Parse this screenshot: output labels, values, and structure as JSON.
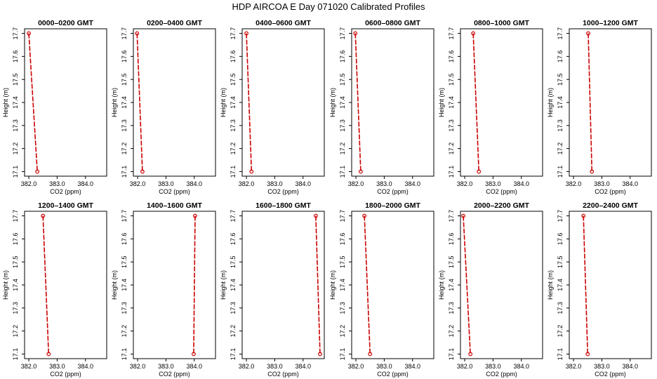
{
  "title": "HDP AIRCOA E  Day 071020  Calibrated Profiles",
  "chart_data": [
    {
      "type": "line",
      "title": "0000–0200 GMT",
      "xlabel": "CO2 (ppm)",
      "ylabel": "Height (m)",
      "x_ticks": [
        "382.0",
        "383.0",
        "384.0"
      ],
      "y_ticks": [
        "17.1",
        "17.2",
        "17.3",
        "17.4",
        "17.5",
        "17.6",
        "17.7"
      ],
      "xlim": [
        381.85,
        384.75
      ],
      "ylim": [
        17.08,
        17.72
      ],
      "points": [
        {
          "x": 382.0,
          "y": 17.7
        },
        {
          "x": 382.3,
          "y": 17.1
        }
      ],
      "line_color": "#cc0000"
    },
    {
      "type": "line",
      "title": "0200–0400 GMT",
      "xlabel": "CO2 (ppm)",
      "ylabel": "Height (m)",
      "x_ticks": [
        "382.0",
        "383.0",
        "384.0"
      ],
      "y_ticks": [
        "17.1",
        "17.2",
        "17.3",
        "17.4",
        "17.5",
        "17.6",
        "17.7"
      ],
      "xlim": [
        381.85,
        384.75
      ],
      "ylim": [
        17.08,
        17.72
      ],
      "points": [
        {
          "x": 381.98,
          "y": 17.7
        },
        {
          "x": 382.17,
          "y": 17.1
        }
      ],
      "line_color": "#cc0000"
    },
    {
      "type": "line",
      "title": "0400–0600 GMT",
      "xlabel": "CO2 (ppm)",
      "ylabel": "Height (m)",
      "x_ticks": [
        "382.0",
        "383.0",
        "384.0"
      ],
      "y_ticks": [
        "17.1",
        "17.2",
        "17.3",
        "17.4",
        "17.5",
        "17.6",
        "17.7"
      ],
      "xlim": [
        381.85,
        384.75
      ],
      "ylim": [
        17.08,
        17.72
      ],
      "points": [
        {
          "x": 382.0,
          "y": 17.7
        },
        {
          "x": 382.18,
          "y": 17.1
        }
      ],
      "line_color": "#cc0000"
    },
    {
      "type": "line",
      "title": "0600–0800 GMT",
      "xlabel": "CO2 (ppm)",
      "ylabel": "Height (m)",
      "x_ticks": [
        "382.0",
        "383.0",
        "384.0"
      ],
      "y_ticks": [
        "17.1",
        "17.2",
        "17.3",
        "17.4",
        "17.5",
        "17.6",
        "17.7"
      ],
      "xlim": [
        381.85,
        384.75
      ],
      "ylim": [
        17.08,
        17.72
      ],
      "points": [
        {
          "x": 381.98,
          "y": 17.7
        },
        {
          "x": 382.17,
          "y": 17.1
        }
      ],
      "line_color": "#cc0000"
    },
    {
      "type": "line",
      "title": "0800–1000 GMT",
      "xlabel": "CO2 (ppm)",
      "ylabel": "Height (m)",
      "x_ticks": [
        "382.0",
        "383.0",
        "384.0"
      ],
      "y_ticks": [
        "17.1",
        "17.2",
        "17.3",
        "17.4",
        "17.5",
        "17.6",
        "17.7"
      ],
      "xlim": [
        381.85,
        384.75
      ],
      "ylim": [
        17.08,
        17.72
      ],
      "points": [
        {
          "x": 382.3,
          "y": 17.7
        },
        {
          "x": 382.5,
          "y": 17.1
        }
      ],
      "line_color": "#cc0000"
    },
    {
      "type": "line",
      "title": "1000–1200 GMT",
      "xlabel": "CO2 (ppm)",
      "ylabel": "Height (m)",
      "x_ticks": [
        "382.0",
        "383.0",
        "384.0"
      ],
      "y_ticks": [
        "17.1",
        "17.2",
        "17.3",
        "17.4",
        "17.5",
        "17.6",
        "17.7"
      ],
      "xlim": [
        381.85,
        384.75
      ],
      "ylim": [
        17.08,
        17.72
      ],
      "points": [
        {
          "x": 382.52,
          "y": 17.7
        },
        {
          "x": 382.65,
          "y": 17.1
        }
      ],
      "line_color": "#cc0000"
    },
    {
      "type": "line",
      "title": "1200–1400 GMT",
      "xlabel": "CO2 (ppm)",
      "ylabel": "Height (m)",
      "x_ticks": [
        "382.0",
        "383.0",
        "384.0"
      ],
      "y_ticks": [
        "17.1",
        "17.2",
        "17.3",
        "17.4",
        "17.5",
        "17.6",
        "17.7"
      ],
      "xlim": [
        381.85,
        384.75
      ],
      "ylim": [
        17.08,
        17.72
      ],
      "points": [
        {
          "x": 382.5,
          "y": 17.7
        },
        {
          "x": 382.7,
          "y": 17.1
        }
      ],
      "line_color": "#cc0000"
    },
    {
      "type": "line",
      "title": "1400–1600 GMT",
      "xlabel": "CO2 (ppm)",
      "ylabel": "Height (m)",
      "x_ticks": [
        "382.0",
        "383.0",
        "384.0"
      ],
      "y_ticks": [
        "17.1",
        "17.2",
        "17.3",
        "17.4",
        "17.5",
        "17.6",
        "17.7"
      ],
      "xlim": [
        381.85,
        384.75
      ],
      "ylim": [
        17.08,
        17.72
      ],
      "points": [
        {
          "x": 384.03,
          "y": 17.7
        },
        {
          "x": 383.98,
          "y": 17.1
        }
      ],
      "line_color": "#cc0000"
    },
    {
      "type": "line",
      "title": "1600–1800 GMT",
      "xlabel": "CO2 (ppm)",
      "ylabel": "Height (m)",
      "x_ticks": [
        "382.0",
        "383.0",
        "384.0"
      ],
      "y_ticks": [
        "17.1",
        "17.2",
        "17.3",
        "17.4",
        "17.5",
        "17.6",
        "17.7"
      ],
      "xlim": [
        381.85,
        384.75
      ],
      "ylim": [
        17.08,
        17.72
      ],
      "points": [
        {
          "x": 384.45,
          "y": 17.7
        },
        {
          "x": 384.6,
          "y": 17.1
        }
      ],
      "line_color": "#cc0000"
    },
    {
      "type": "line",
      "title": "1800–2000 GMT",
      "xlabel": "CO2 (ppm)",
      "ylabel": "Height (m)",
      "x_ticks": [
        "382.0",
        "383.0",
        "384.0"
      ],
      "y_ticks": [
        "17.1",
        "17.2",
        "17.3",
        "17.4",
        "17.5",
        "17.6",
        "17.7"
      ],
      "xlim": [
        381.85,
        384.75
      ],
      "ylim": [
        17.08,
        17.72
      ],
      "points": [
        {
          "x": 382.3,
          "y": 17.7
        },
        {
          "x": 382.5,
          "y": 17.1
        }
      ],
      "line_color": "#cc0000"
    },
    {
      "type": "line",
      "title": "2000–2200 GMT",
      "xlabel": "CO2 (ppm)",
      "ylabel": "Height (m)",
      "x_ticks": [
        "382.0",
        "383.0",
        "384.0"
      ],
      "y_ticks": [
        "17.1",
        "17.2",
        "17.3",
        "17.4",
        "17.5",
        "17.6",
        "17.7"
      ],
      "xlim": [
        381.85,
        384.75
      ],
      "ylim": [
        17.08,
        17.72
      ],
      "points": [
        {
          "x": 381.95,
          "y": 17.7
        },
        {
          "x": 382.2,
          "y": 17.1
        }
      ],
      "line_color": "#cc0000"
    },
    {
      "type": "line",
      "title": "2200–2400 GMT",
      "xlabel": "CO2 (ppm)",
      "ylabel": "Height (m)",
      "x_ticks": [
        "382.0",
        "383.0",
        "384.0"
      ],
      "y_ticks": [
        "17.1",
        "17.2",
        "17.3",
        "17.4",
        "17.5",
        "17.6",
        "17.7"
      ],
      "xlim": [
        381.85,
        384.75
      ],
      "ylim": [
        17.08,
        17.72
      ],
      "points": [
        {
          "x": 382.35,
          "y": 17.7
        },
        {
          "x": 382.5,
          "y": 17.1
        }
      ],
      "line_color": "#cc0000"
    }
  ]
}
